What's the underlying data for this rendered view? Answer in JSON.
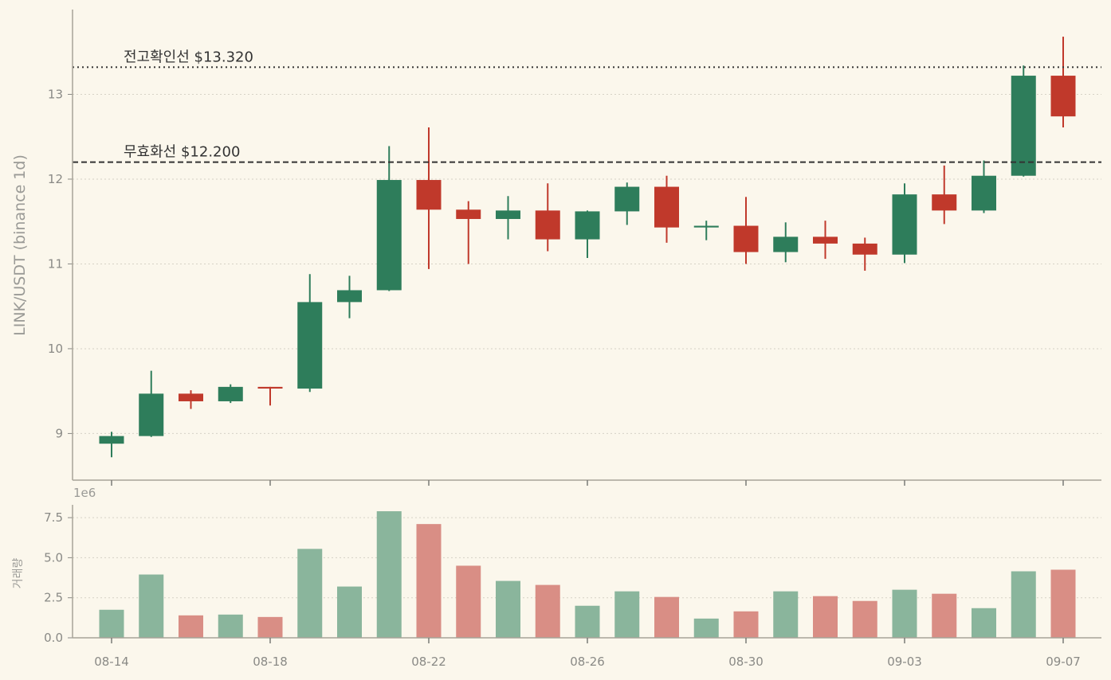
{
  "chart_data": {
    "type": "candlestick",
    "price_axis_label": "LINK/USDT (binance 1d)",
    "volume_axis_label": "거래량",
    "volume_exponent_label": "1e6",
    "price_ylim": [
      8.45,
      14.0
    ],
    "price_yticks": [
      "9",
      "10",
      "11",
      "12",
      "13"
    ],
    "volume_ylim": [
      0,
      8.3
    ],
    "volume_yticks": [
      "0.0",
      "2.5",
      "5.0",
      "7.5"
    ],
    "x_tick_labels": [
      "08-14",
      "08-18",
      "08-22",
      "08-26",
      "08-30",
      "09-03",
      "09-07"
    ],
    "x_tick_indices": [
      0,
      4,
      8,
      12,
      16,
      20,
      24
    ],
    "grid": true,
    "colors": {
      "up": "#2e7d5b",
      "down": "#c0392b",
      "up_volume": "#8ab59c",
      "down_volume": "#d98e85",
      "background": "#fbf7ec"
    },
    "reference_lines": [
      {
        "label": "전고확인선 $13.320",
        "value": 13.32,
        "style": "dotted"
      },
      {
        "label": "무효화선 $12.200",
        "value": 12.2,
        "style": "dashed"
      }
    ],
    "candles": [
      {
        "date": "08-14",
        "open": 8.88,
        "high": 9.02,
        "low": 8.72,
        "close": 8.97,
        "volume": 1.75
      },
      {
        "date": "08-15",
        "open": 8.97,
        "high": 9.74,
        "low": 8.96,
        "close": 9.47,
        "volume": 3.95
      },
      {
        "date": "08-16",
        "open": 9.47,
        "high": 9.51,
        "low": 9.29,
        "close": 9.38,
        "volume": 1.4
      },
      {
        "date": "08-17",
        "open": 9.38,
        "high": 9.58,
        "low": 9.36,
        "close": 9.55,
        "volume": 1.45
      },
      {
        "date": "08-18",
        "open": 9.55,
        "high": 9.55,
        "low": 9.33,
        "close": 9.53,
        "volume": 1.3
      },
      {
        "date": "08-19",
        "open": 9.53,
        "high": 10.88,
        "low": 9.49,
        "close": 10.55,
        "volume": 5.55
      },
      {
        "date": "08-20",
        "open": 10.55,
        "high": 10.86,
        "low": 10.36,
        "close": 10.69,
        "volume": 3.2
      },
      {
        "date": "08-21",
        "open": 10.69,
        "high": 12.39,
        "low": 10.68,
        "close": 11.99,
        "volume": 7.9
      },
      {
        "date": "08-22",
        "open": 11.99,
        "high": 12.61,
        "low": 10.94,
        "close": 11.64,
        "volume": 7.1
      },
      {
        "date": "08-23",
        "open": 11.64,
        "high": 11.74,
        "low": 11.0,
        "close": 11.53,
        "volume": 4.5
      },
      {
        "date": "08-24",
        "open": 11.53,
        "high": 11.8,
        "low": 11.29,
        "close": 11.63,
        "volume": 3.55
      },
      {
        "date": "08-25",
        "open": 11.63,
        "high": 11.95,
        "low": 11.15,
        "close": 11.29,
        "volume": 3.3
      },
      {
        "date": "08-26",
        "open": 11.29,
        "high": 11.63,
        "low": 11.07,
        "close": 11.62,
        "volume": 2.0
      },
      {
        "date": "08-27",
        "open": 11.62,
        "high": 11.96,
        "low": 11.46,
        "close": 11.91,
        "volume": 2.9
      },
      {
        "date": "08-28",
        "open": 11.91,
        "high": 12.04,
        "low": 11.25,
        "close": 11.43,
        "volume": 2.55
      },
      {
        "date": "08-29",
        "open": 11.43,
        "high": 11.51,
        "low": 11.28,
        "close": 11.45,
        "volume": 1.2
      },
      {
        "date": "08-30",
        "open": 11.45,
        "high": 11.79,
        "low": 11.0,
        "close": 11.14,
        "volume": 1.65
      },
      {
        "date": "08-31",
        "open": 11.14,
        "high": 11.49,
        "low": 11.02,
        "close": 11.32,
        "volume": 2.9
      },
      {
        "date": "09-01",
        "open": 11.32,
        "high": 11.51,
        "low": 11.06,
        "close": 11.24,
        "volume": 2.6
      },
      {
        "date": "09-02",
        "open": 11.24,
        "high": 11.31,
        "low": 10.92,
        "close": 11.11,
        "volume": 2.3
      },
      {
        "date": "09-03",
        "open": 11.11,
        "high": 11.95,
        "low": 11.01,
        "close": 11.82,
        "volume": 3.0
      },
      {
        "date": "09-04",
        "open": 11.82,
        "high": 12.16,
        "low": 11.47,
        "close": 11.63,
        "volume": 2.75
      },
      {
        "date": "09-05",
        "open": 11.63,
        "high": 12.22,
        "low": 11.6,
        "close": 12.04,
        "volume": 1.85
      },
      {
        "date": "09-06",
        "open": 12.04,
        "high": 13.34,
        "low": 12.03,
        "close": 13.22,
        "volume": 4.15
      },
      {
        "date": "09-07",
        "open": 13.22,
        "high": 13.68,
        "low": 12.61,
        "close": 12.74,
        "volume": 4.25
      }
    ]
  }
}
